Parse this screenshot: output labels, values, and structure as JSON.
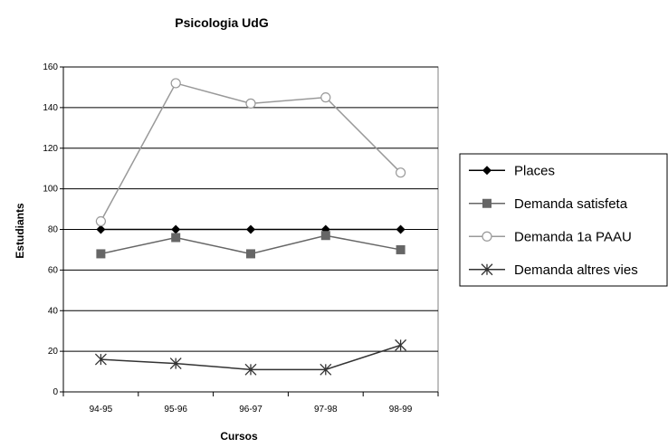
{
  "chart_data": {
    "type": "line",
    "title": "Psicologia UdG",
    "xlabel": "Cursos",
    "ylabel": "Estudiants",
    "categories": [
      "94-95",
      "95-96",
      "96-97",
      "97-98",
      "98-99"
    ],
    "ylim": [
      0,
      160
    ],
    "yticks": [
      0,
      20,
      40,
      60,
      80,
      100,
      120,
      140,
      160
    ],
    "grid": "horizontal",
    "legend_position": "right",
    "series": [
      {
        "name": "Places",
        "values": [
          80,
          80,
          80,
          80,
          80
        ],
        "color": "#000000",
        "marker": "diamond"
      },
      {
        "name": "Demanda satisfeta",
        "values": [
          68,
          76,
          68,
          77,
          70
        ],
        "color": "#666666",
        "marker": "square"
      },
      {
        "name": "Demanda 1a PAAU",
        "values": [
          84,
          152,
          142,
          145,
          108
        ],
        "color": "#999999",
        "marker": "circle"
      },
      {
        "name": "Demanda altres vies",
        "values": [
          16,
          14,
          11,
          11,
          23
        ],
        "color": "#333333",
        "marker": "star"
      }
    ]
  }
}
